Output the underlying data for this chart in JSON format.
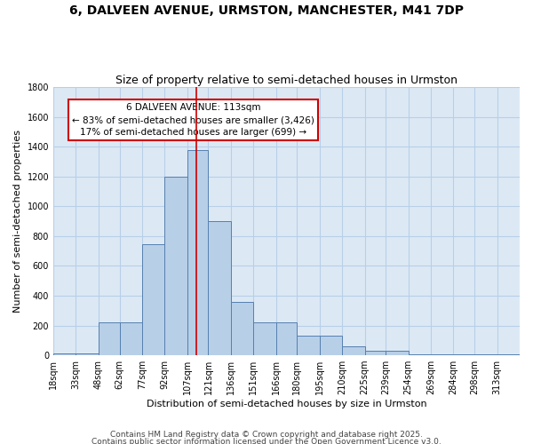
{
  "title": "6, DALVEEN AVENUE, URMSTON, MANCHESTER, M41 7DP",
  "subtitle": "Size of property relative to semi-detached houses in Urmston",
  "xlabel": "Distribution of semi-detached houses by size in Urmston",
  "ylabel": "Number of semi-detached properties",
  "footnote1": "Contains HM Land Registry data © Crown copyright and database right 2025.",
  "footnote2": "Contains public sector information licensed under the Open Government Licence v3.0.",
  "annotation_title": "6 DALVEEN AVENUE: 113sqm",
  "annotation_line1": "← 83% of semi-detached houses are smaller (3,426)",
  "annotation_line2": "17% of semi-detached houses are larger (699) →",
  "property_size": 113,
  "bar_left_edges": [
    18,
    33,
    48,
    62,
    77,
    92,
    107,
    121,
    136,
    151,
    166,
    180,
    195,
    210,
    225,
    239,
    254,
    269,
    284,
    298,
    313
  ],
  "bar_heights": [
    10,
    15,
    220,
    220,
    745,
    1200,
    1380,
    900,
    360,
    220,
    220,
    130,
    130,
    60,
    30,
    30,
    5,
    5,
    5,
    5,
    5
  ],
  "bar_color": "#b8cfe8",
  "bar_edgecolor": "#5580b0",
  "vline_color": "#cc0000",
  "vline_x": 113,
  "ylim": [
    0,
    1800
  ],
  "yticks": [
    0,
    200,
    400,
    600,
    800,
    1000,
    1200,
    1400,
    1600,
    1800
  ],
  "background_color": "#ffffff",
  "axes_bg_color": "#dce9f5",
  "grid_color": "#b8cfe8",
  "annotation_box_color": "#ffffff",
  "annotation_box_edgecolor": "#cc0000",
  "title_fontsize": 10,
  "subtitle_fontsize": 9,
  "ylabel_fontsize": 8,
  "xlabel_fontsize": 8,
  "tick_fontsize": 7,
  "annot_fontsize": 7.5,
  "footnote_fontsize": 6.5
}
